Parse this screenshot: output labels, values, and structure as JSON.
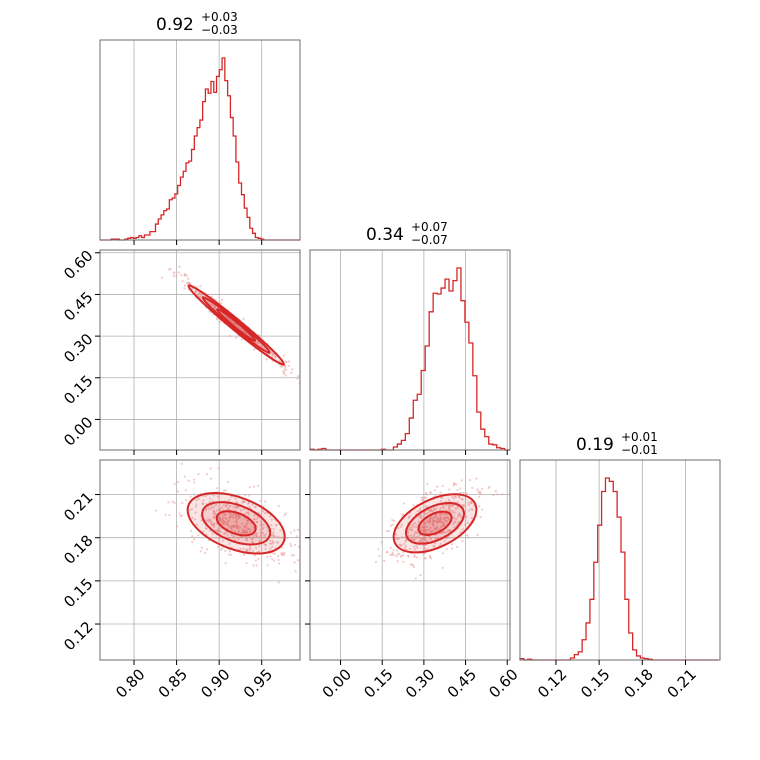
{
  "chart_data": {
    "type": "corner",
    "parameters": [
      {
        "summary_value": "0.92",
        "plus": "+0.03",
        "minus": "−0.03",
        "ticks": [
          "0.80",
          "0.85",
          "0.90",
          "0.95"
        ],
        "range": [
          0.76,
          0.995
        ]
      },
      {
        "summary_value": "0.34",
        "plus": "+0.07",
        "minus": "−0.07",
        "ticks": [
          "0.00",
          "0.15",
          "0.30",
          "0.45",
          "0.60"
        ],
        "range": [
          -0.11,
          0.61
        ]
      },
      {
        "summary_value": "0.19",
        "plus": "+0.01",
        "minus": "−0.01",
        "ticks": [
          "0.12",
          "0.15",
          "0.18",
          "0.21"
        ],
        "range": [
          0.095,
          0.234
        ]
      }
    ],
    "histograms": [
      {
        "bin_edges_start": 0.76,
        "bin_width": 0.00326,
        "counts": [
          0,
          0,
          0,
          0,
          1,
          1,
          1,
          0,
          0,
          1,
          2,
          3,
          2,
          3,
          5,
          3,
          6,
          6,
          10,
          10,
          19,
          25,
          30,
          35,
          37,
          48,
          50,
          55,
          65,
          75,
          82,
          92,
          94,
          108,
          124,
          134,
          143,
          165,
          180,
          175,
          189,
          176,
          195,
          203,
          217,
          190,
          172,
          146,
          124,
          93,
          68,
          54,
          38,
          27,
          14,
          8,
          3,
          2,
          1,
          0,
          0,
          0,
          0,
          0,
          0,
          0,
          0,
          0,
          0,
          0,
          0,
          0
        ]
      },
      {
        "bin_edges_start": -0.11,
        "bin_width": 0.0143,
        "counts": [
          1,
          0,
          1,
          2,
          0,
          0,
          0,
          0,
          0,
          0,
          0,
          0,
          0,
          0,
          0,
          0,
          0,
          0,
          1,
          0,
          0,
          4,
          8,
          13,
          22,
          43,
          67,
          75,
          107,
          140,
          186,
          211,
          210,
          218,
          230,
          214,
          228,
          245,
          201,
          172,
          144,
          100,
          51,
          28,
          18,
          8,
          7,
          3,
          2,
          0,
          0
        ]
      },
      {
        "bin_edges_start": 0.095,
        "bin_width": 0.0027,
        "counts": [
          2,
          0,
          1,
          0,
          0,
          0,
          0,
          0,
          0,
          0,
          0,
          0,
          0,
          3,
          8,
          12,
          30,
          55,
          90,
          145,
          200,
          250,
          270,
          265,
          250,
          212,
          160,
          90,
          40,
          15,
          6,
          3,
          2,
          1,
          0,
          0,
          0,
          0,
          0,
          0,
          0,
          0,
          0,
          0,
          0,
          0,
          0,
          0,
          0,
          0,
          0
        ]
      }
    ],
    "pairs": [
      {
        "x_param": 0,
        "y_param": 1,
        "relation": "negative",
        "center": [
          0.92,
          0.34
        ]
      },
      {
        "x_param": 0,
        "y_param": 2,
        "relation": "negative",
        "center": [
          0.92,
          0.19
        ]
      },
      {
        "x_param": 1,
        "y_param": 2,
        "relation": "positive",
        "center": [
          0.34,
          0.19
        ]
      }
    ],
    "colors": {
      "series": "#d62728",
      "scatter": "#e8a0a0",
      "grid": "#b0b0b0",
      "frame": "#6e6e6e"
    }
  }
}
